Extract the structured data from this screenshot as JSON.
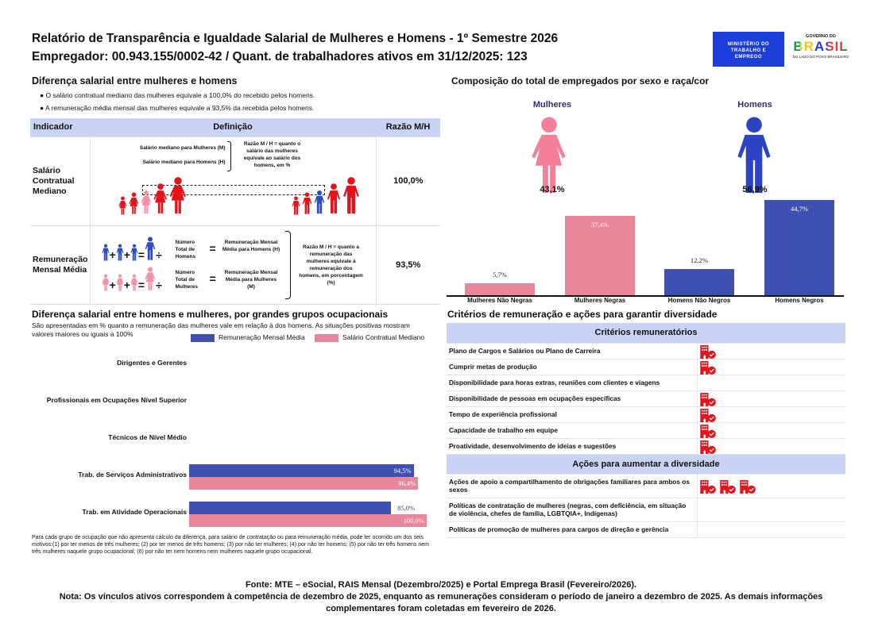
{
  "header": {
    "title": "Relatório de Transparência e Igualdade Salarial de Mulheres e Homens - 1º Semestre 2026",
    "subtitle": "Empregador: 00.943.155/0002-42 / Quant. de trabalhadores ativos em 31/12/2025: 123",
    "logo_ministry": "MINISTÉRIO DO TRABALHO E EMPREGO",
    "logo_gov_top": "GOVERNO DO",
    "logo_gov_main": "BRASIL",
    "logo_gov_bottom": "DO LADO DO POVO BRASILEIRO"
  },
  "salary_gap": {
    "title": "Diferença salarial entre mulheres e homens",
    "bullets": [
      "O salário contratual mediano das mulheres equivale a 100,0% do recebido pelos homens.",
      "A remuneração média mensal das mulheres equivale a 93,5% da recebida pelos homens."
    ],
    "table": {
      "headers": [
        "Indicador",
        "Definição",
        "Razão M/H"
      ],
      "rows": [
        {
          "indicator": "Salário Contratual Mediano",
          "women_label": "Salário mediano para Mulheres (M)",
          "men_label": "Salário mediano para Homens (H)",
          "ratio_def": "Razão M / H = quanto o salário das mulheres equivale ao salário dos homens, em %",
          "value": "100,0%"
        },
        {
          "indicator": "Remuneração Mensal Média",
          "men_count": "Número Total de Homens",
          "men_avg": "Remuneração Mensal Média para Homens (H)",
          "women_count": "Número Total de Mulheres",
          "women_avg": "Remuneração Mensal Média para Mulheres (M)",
          "ratio_def": "Razão M / H = quanto a remuneração das mulheres equivale à remuneração dos homens, em porcentagem (%)",
          "value": "93,5%"
        }
      ]
    }
  },
  "composition": {
    "title": "Composição do total de empregados por sexo e raça/cor",
    "women_label": "Mulheres",
    "women_pct": "43,1%",
    "men_label": "Homens",
    "men_pct": "56,9%"
  },
  "occupation": {
    "title": "Diferença salarial entre homens e mulheres, por grandes grupos ocupacionais",
    "description": "São apresentadas em % quanto a remuneração das mulheres vale em relação à dos homens. As situações positivas mostram valores maiores ou iguais a 100%",
    "footnote": "Para cada grupo de ocupação que não apresenta cálculo da diferença, para salário de contratação ou para remuneração média, pode ter ocorrido um dos seis motivos:(1) por ter menos de três mulheres; (2) por ter menos de três homens; (3) por não ter mulheres; (4) por não ter homens; (5) por não ter três homens nem três mulheres naquele grupo ocupacional; (6) por não ter nem homens nem mulheres naquele grupo ocupacional."
  },
  "chart_data": [
    {
      "type": "bar",
      "orientation": "vertical",
      "categories": [
        "Mulheres Não Negras",
        "Mulheres Negras",
        "Homens Não Negros",
        "Homens Negros"
      ],
      "values": [
        5.7,
        37.4,
        12.2,
        44.7
      ],
      "labels": [
        "5,7%",
        "37,4%",
        "12,2%",
        "44,7%"
      ],
      "colors": [
        "#e8879b",
        "#e8879b",
        "#3f51b0",
        "#3f51b0"
      ]
    },
    {
      "type": "bar",
      "orientation": "horizontal",
      "categories": [
        "Dirigentes e Gerentes",
        "Profissionais em Ocupações Nível Superior",
        "Técnicos de Nível Médio",
        "Trab. de Serviços Administrativos",
        "Trab. em Atividade Operacionais"
      ],
      "series": [
        {
          "name": "Remuneração Mensal Média",
          "color": "#3f51b0",
          "values": [
            null,
            null,
            null,
            94.5,
            85.0
          ],
          "labels": [
            "",
            "",
            "",
            "94,5%",
            "85,0%"
          ]
        },
        {
          "name": "Salário Contratual Mediano",
          "color": "#e8879b",
          "values": [
            null,
            null,
            null,
            96.4,
            100.0
          ],
          "labels": [
            "",
            "",
            "",
            "96,4%",
            "100,0%"
          ]
        }
      ],
      "legend": "top-right",
      "xlim": [
        0,
        100
      ]
    }
  ],
  "criteria": {
    "title": "Critérios de remuneração e ações para garantir diversidade",
    "section1": "Critérios remuneratórios",
    "items": [
      {
        "label": "Plano de Cargos e Salários ou Plano de Carreira",
        "checks": 1
      },
      {
        "label": "Cumprir metas de produção",
        "checks": 1
      },
      {
        "label": "Disponibilidade para horas extras, reuniões com clientes e viagens",
        "checks": 0
      },
      {
        "label": "Disponibilidade de pessoas em ocupações específicas",
        "checks": 1
      },
      {
        "label": "Tempo de experiência profissional",
        "checks": 1
      },
      {
        "label": "Capacidade de trabalho em equipe",
        "checks": 1
      },
      {
        "label": "Proatividade, desenvolvimento de ideias e sugestões",
        "checks": 1
      }
    ],
    "section2": "Ações para aumentar a diversidade",
    "actions": [
      {
        "label": "Ações de apoio a compartilhamento de obrigações familiares para ambos os sexos",
        "checks": 3
      },
      {
        "label": "Políticas de contratação de mulheres (negras, com deficiência, em situação de violência, chefes de família, LGBTQIA+, Indígenas)",
        "checks": 0
      },
      {
        "label": "Políticas de promoção de mulheres para cargos de direção e gerência",
        "checks": 0
      }
    ],
    "check_icon": "building-check-icon",
    "check_color": "#e0161c"
  },
  "footer": {
    "source": "Fonte: MTE – eSocial, RAIS Mensal (Dezembro/2025) e Portal Emprega Brasil (Fevereiro/2026).",
    "note": "Nota: Os vínculos ativos correspondem à competência de dezembro de 2025, enquanto as remunerações consideram o período de janeiro a dezembro de 2025. As demais informações complementares foram coletadas em fevereiro de 2026."
  }
}
